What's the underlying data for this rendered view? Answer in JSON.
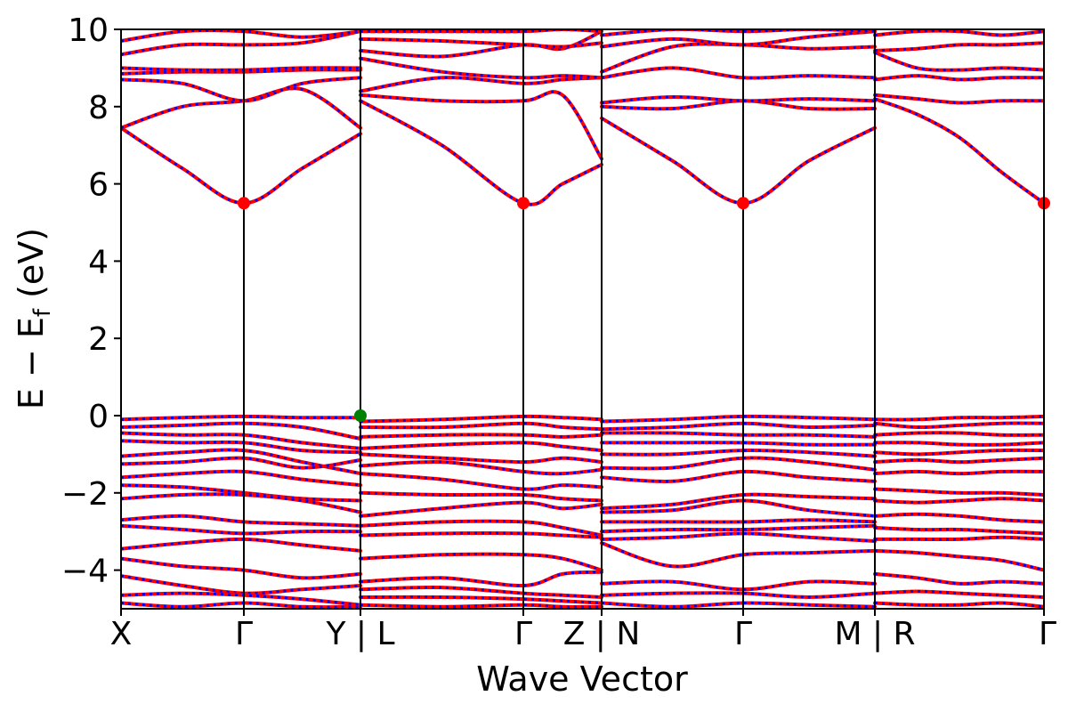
{
  "chart_data": {
    "type": "line",
    "title": "",
    "xlabel": "Wave Vector",
    "ylabel_main": "E − E",
    "ylabel_sub": "f",
    "ylabel_unit": " (eV)",
    "ylim": [
      -5,
      10
    ],
    "yticks": [
      10,
      8,
      6,
      4,
      2,
      0,
      -2,
      -4
    ],
    "ytick_labels": [
      "10",
      "8",
      "6",
      "4",
      "2",
      "0",
      "−2",
      "−4"
    ],
    "x_tick_labels": [
      "X",
      "Γ",
      "Y | L",
      "Γ",
      "Z | N",
      "Γ",
      "M | R",
      "Γ"
    ],
    "grid": false,
    "colors": {
      "band_solid": "#ff0000",
      "band_dash": "#0000ff",
      "cbm_marker": "#ff0000",
      "vbm_marker": "#008000",
      "kpath_line": "#000000"
    },
    "segments": [
      {
        "from": "X",
        "to": "Γ",
        "to_next": "Y",
        "conduction_bands": [
          [
            7.45,
            6.4,
            5.5,
            6.4,
            7.3
          ],
          [
            7.45,
            8.0,
            8.15,
            8.45,
            7.45
          ],
          [
            8.7,
            8.6,
            8.15,
            8.6,
            8.75
          ],
          [
            8.85,
            8.9,
            8.9,
            8.95,
            8.95
          ],
          [
            9.0,
            8.95,
            8.95,
            9.0,
            9.0
          ],
          [
            9.35,
            9.6,
            9.6,
            9.65,
            9.95
          ],
          [
            9.7,
            9.95,
            9.95,
            9.8,
            9.95
          ]
        ],
        "valence_bands": [
          [
            -0.1,
            -0.05,
            -0.02,
            -0.05,
            -0.05
          ],
          [
            -0.3,
            -0.25,
            -0.2,
            -0.3,
            -0.6
          ],
          [
            -0.45,
            -0.5,
            -0.5,
            -0.7,
            -0.85
          ],
          [
            -0.65,
            -0.7,
            -0.7,
            -0.9,
            -0.95
          ],
          [
            -1.05,
            -0.95,
            -0.9,
            -1.2,
            -1.5
          ],
          [
            -1.25,
            -1.2,
            -1.1,
            -1.35,
            -1.15
          ],
          [
            -1.6,
            -1.5,
            -1.45,
            -1.65,
            -1.8
          ],
          [
            -1.8,
            -1.85,
            -2.0,
            -2.15,
            -2.2
          ],
          [
            -2.15,
            -2.05,
            -2.05,
            -2.2,
            -2.5
          ],
          [
            -2.7,
            -2.6,
            -2.75,
            -2.8,
            -2.85
          ],
          [
            -2.85,
            -2.95,
            -3.05,
            -3.0,
            -3.0
          ],
          [
            -3.45,
            -3.3,
            -3.2,
            -3.35,
            -3.5
          ],
          [
            -3.7,
            -3.9,
            -4.0,
            -4.2,
            -4.1
          ],
          [
            -4.15,
            -4.4,
            -4.6,
            -4.5,
            -4.4
          ],
          [
            -4.65,
            -4.6,
            -4.65,
            -4.75,
            -4.9
          ],
          [
            -4.85,
            -4.95,
            -4.85,
            -4.95,
            -4.95
          ]
        ]
      },
      {
        "from": "L",
        "to": "Γ",
        "to_next": "Z",
        "conduction_bands": [
          [
            8.15,
            7.0,
            5.5,
            6.0,
            6.5
          ],
          [
            8.3,
            8.15,
            8.15,
            8.3,
            6.65
          ],
          [
            8.4,
            8.75,
            8.6,
            8.7,
            8.75
          ],
          [
            9.25,
            8.9,
            8.75,
            8.8,
            8.75
          ],
          [
            9.45,
            9.3,
            9.6,
            9.5,
            9.95
          ],
          [
            9.75,
            9.7,
            9.6,
            9.55,
            9.65
          ],
          [
            9.95,
            9.95,
            9.95,
            10.0,
            9.95
          ]
        ],
        "valence_bands": [
          [
            -0.15,
            -0.1,
            -0.02,
            -0.05,
            -0.1
          ],
          [
            -0.3,
            -0.3,
            -0.2,
            -0.3,
            -0.35
          ],
          [
            -0.55,
            -0.5,
            -0.5,
            -0.55,
            -0.5
          ],
          [
            -0.85,
            -0.75,
            -0.7,
            -0.8,
            -0.9
          ],
          [
            -1.0,
            -1.1,
            -1.2,
            -1.1,
            -1.2
          ],
          [
            -1.3,
            -1.2,
            -1.45,
            -1.5,
            -1.4
          ],
          [
            -1.5,
            -1.65,
            -1.9,
            -1.8,
            -1.85
          ],
          [
            -2.0,
            -2.05,
            -2.05,
            -2.15,
            -2.2
          ],
          [
            -2.6,
            -2.4,
            -2.25,
            -2.4,
            -2.3
          ],
          [
            -2.85,
            -2.75,
            -2.75,
            -2.9,
            -3.1
          ],
          [
            -3.1,
            -3.05,
            -3.05,
            -3.1,
            -3.15
          ],
          [
            -3.7,
            -3.6,
            -3.6,
            -3.7,
            -4.0
          ],
          [
            -4.3,
            -4.2,
            -4.4,
            -4.1,
            -4.05
          ],
          [
            -4.5,
            -4.45,
            -4.6,
            -4.65,
            -4.7
          ],
          [
            -4.7,
            -4.7,
            -4.75,
            -4.8,
            -4.85
          ],
          [
            -4.9,
            -4.95,
            -4.9,
            -4.95,
            -4.95
          ]
        ]
      },
      {
        "from": "N",
        "to": "Γ",
        "to_next": "M",
        "conduction_bands": [
          [
            7.7,
            6.6,
            5.5,
            6.6,
            7.45
          ],
          [
            8.0,
            7.95,
            8.15,
            7.95,
            7.95
          ],
          [
            8.1,
            8.25,
            8.15,
            8.2,
            8.15
          ],
          [
            8.75,
            9.0,
            8.75,
            8.8,
            8.75
          ],
          [
            8.9,
            9.55,
            9.6,
            9.5,
            9.55
          ],
          [
            9.55,
            9.75,
            9.6,
            9.8,
            9.95
          ],
          [
            9.85,
            10.0,
            9.95,
            10.0,
            9.95
          ]
        ],
        "valence_bands": [
          [
            -0.15,
            -0.1,
            -0.02,
            -0.05,
            -0.1
          ],
          [
            -0.35,
            -0.3,
            -0.2,
            -0.3,
            -0.25
          ],
          [
            -0.45,
            -0.45,
            -0.5,
            -0.5,
            -0.55
          ],
          [
            -0.7,
            -0.7,
            -0.7,
            -0.75,
            -0.75
          ],
          [
            -1.0,
            -1.0,
            -0.9,
            -0.95,
            -1.05
          ],
          [
            -1.35,
            -1.35,
            -1.1,
            -1.2,
            -1.4
          ],
          [
            -1.6,
            -1.7,
            -1.45,
            -1.6,
            -1.7
          ],
          [
            -2.4,
            -2.3,
            -2.05,
            -2.1,
            -2.15
          ],
          [
            -2.5,
            -2.45,
            -2.2,
            -2.45,
            -2.6
          ],
          [
            -2.75,
            -2.75,
            -2.75,
            -2.7,
            -2.75
          ],
          [
            -3.0,
            -2.95,
            -2.95,
            -2.9,
            -2.85
          ],
          [
            -3.2,
            -3.15,
            -3.05,
            -3.15,
            -3.25
          ],
          [
            -3.3,
            -3.9,
            -3.6,
            -3.55,
            -3.5
          ],
          [
            -4.35,
            -4.3,
            -4.5,
            -4.3,
            -4.35
          ],
          [
            -4.65,
            -4.6,
            -4.6,
            -4.7,
            -4.6
          ],
          [
            -4.85,
            -4.95,
            -4.85,
            -4.9,
            -4.95
          ]
        ]
      },
      {
        "from": "R",
        "to": "Γ",
        "to_next": "",
        "conduction_bands": [
          [
            8.2,
            7.8,
            7.2,
            6.3,
            5.5
          ],
          [
            8.3,
            8.2,
            8.1,
            8.15,
            8.15
          ],
          [
            8.7,
            8.8,
            8.7,
            8.75,
            8.75
          ],
          [
            9.4,
            9.0,
            8.95,
            9.0,
            8.95
          ],
          [
            9.45,
            9.5,
            9.6,
            9.6,
            9.65
          ],
          [
            9.85,
            9.95,
            9.95,
            9.85,
            9.95
          ]
        ],
        "valence_bands": [
          [
            -0.1,
            -0.1,
            -0.05,
            -0.05,
            -0.02
          ],
          [
            -0.2,
            -0.3,
            -0.25,
            -0.2,
            -0.2
          ],
          [
            -0.5,
            -0.45,
            -0.45,
            -0.5,
            -0.5
          ],
          [
            -0.7,
            -0.7,
            -0.75,
            -0.75,
            -0.7
          ],
          [
            -0.95,
            -1.0,
            -0.95,
            -0.9,
            -0.9
          ],
          [
            -1.2,
            -1.15,
            -1.2,
            -1.15,
            -1.1
          ],
          [
            -1.5,
            -1.45,
            -1.5,
            -1.45,
            -1.45
          ],
          [
            -1.9,
            -1.95,
            -2.0,
            -2.0,
            -2.05
          ],
          [
            -2.2,
            -2.25,
            -2.2,
            -2.15,
            -2.2
          ],
          [
            -2.6,
            -2.55,
            -2.6,
            -2.7,
            -2.75
          ],
          [
            -2.9,
            -2.95,
            -2.95,
            -3.0,
            -3.05
          ],
          [
            -3.2,
            -3.2,
            -3.2,
            -3.15,
            -3.2
          ],
          [
            -3.5,
            -3.55,
            -3.65,
            -3.75,
            -4.0
          ],
          [
            -4.1,
            -4.2,
            -4.35,
            -4.3,
            -4.35
          ],
          [
            -4.6,
            -4.55,
            -4.6,
            -4.65,
            -4.7
          ],
          [
            -4.85,
            -4.9,
            -4.9,
            -4.85,
            -4.95
          ]
        ]
      }
    ],
    "markers": [
      {
        "label": "CBM",
        "segment": 0,
        "position": "Γ",
        "energy": 5.5,
        "color": "#ff0000"
      },
      {
        "label": "CBM",
        "segment": 1,
        "position": "Γ",
        "energy": 5.5,
        "color": "#ff0000"
      },
      {
        "label": "CBM",
        "segment": 2,
        "position": "Γ",
        "energy": 5.5,
        "color": "#ff0000"
      },
      {
        "label": "CBM",
        "segment": 3,
        "position": "Γ",
        "energy": 5.5,
        "color": "#ff0000"
      },
      {
        "label": "VBM",
        "segment": 0,
        "position": "Y",
        "energy": 0.0,
        "color": "#008000"
      }
    ]
  }
}
